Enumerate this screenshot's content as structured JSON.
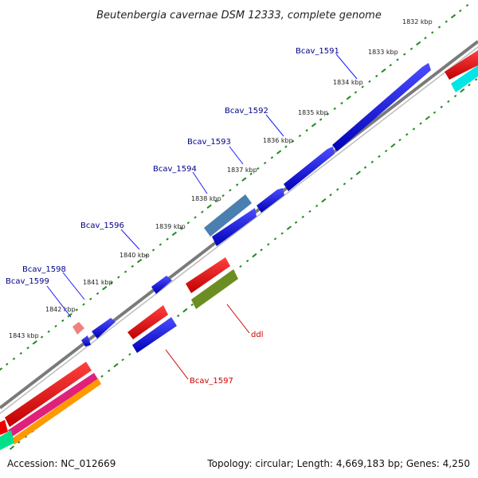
{
  "title": "Beutenbergia cavernae DSM 12333, complete genome",
  "footer": {
    "accession": "Accession: NC_012669",
    "summary": "Topology: circular; Length: 4,669,183 bp; Genes: 4,250"
  },
  "kbp_ticks": [
    "1832 kbp",
    "1833 kbp",
    "1834 kbp",
    "1835 kbp",
    "1836 kbp",
    "1837 kbp",
    "1838 kbp",
    "1839 kbp",
    "1840 kbp",
    "1841 kbp",
    "1842 kbp",
    "1843 kbp"
  ],
  "gene_labels_upper": [
    "Bcav_1591",
    "Bcav_1592",
    "Bcav_1593",
    "Bcav_1594",
    "Bcav_1596",
    "Bcav_1598",
    "Bcav_1599"
  ],
  "gene_labels_lower": [
    "ddl",
    "Bcav_1597"
  ],
  "colors": {
    "forward_gene": "#0000ee",
    "reverse_gene": "#ee0000",
    "steel_gene": "#4a7fb0",
    "olive_gene": "#6b8e23",
    "backbone": "#808080",
    "tick_dots": "#228b22",
    "label_blue": "#00008b",
    "label_red": "#cc0000"
  }
}
